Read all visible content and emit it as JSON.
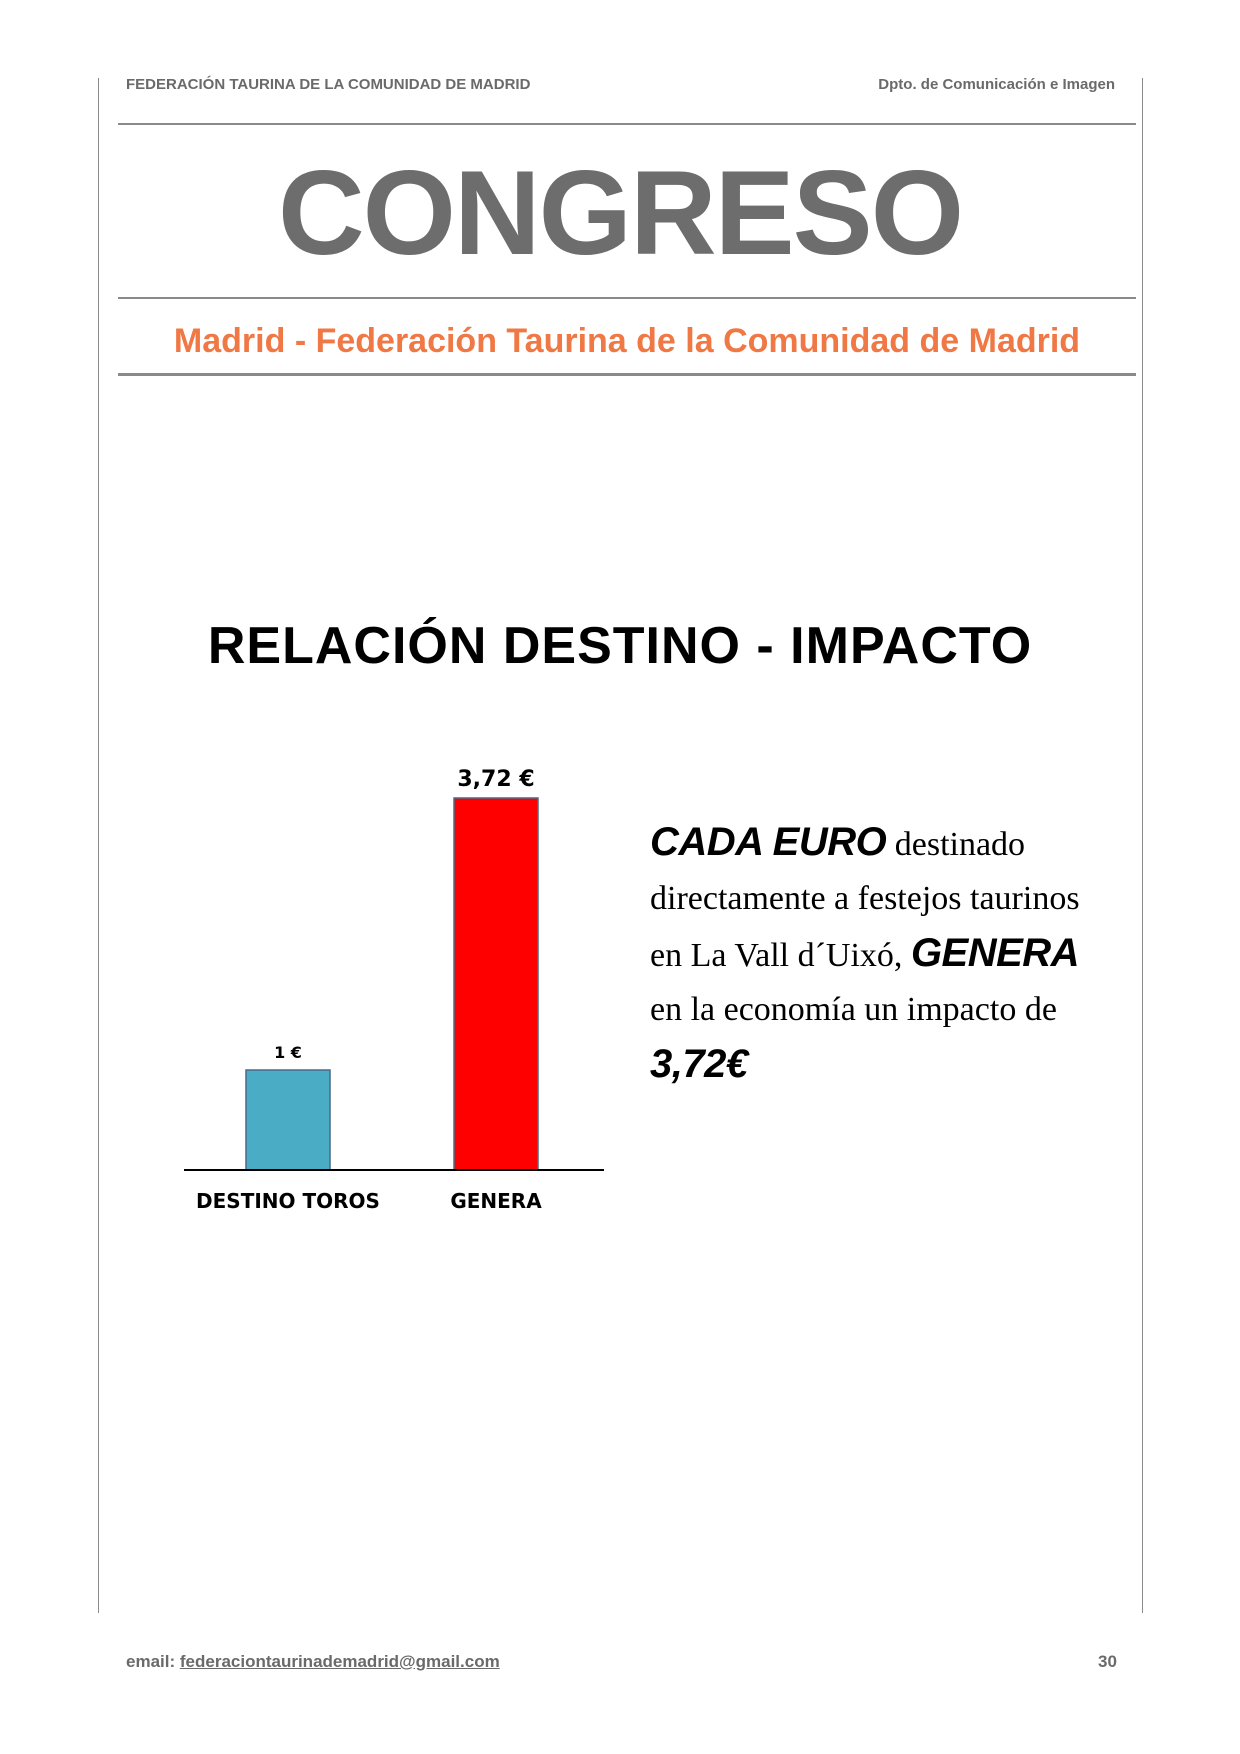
{
  "header": {
    "left": "FEDERACIÓN TAURINA DE LA COMUNIDAD DE MADRID",
    "right": "Dpto. de Comunicación e Imagen"
  },
  "title": "CONGRESO",
  "subtitle": "Madrid - Federación Taurina de la Comunidad de Madrid",
  "section_title": "RELACIÓN DESTINO - IMPACTO",
  "chart_data": {
    "type": "bar",
    "categories": [
      "DESTINO TOROS",
      "GENERA"
    ],
    "values": [
      1,
      3.72
    ],
    "data_labels": [
      "1 €",
      "3,72 €"
    ],
    "colors": [
      "#4bacc6",
      "#ff0000"
    ],
    "ylim": [
      0,
      4
    ],
    "grid": false,
    "legend": false
  },
  "paragraph": {
    "em1": "CADA EURO",
    "text1": " destinado directamente a festejos taurinos en La Vall d´Uixó, ",
    "em2": "GENERA",
    "text2": " en la economía un impacto de ",
    "em3": "3,72€"
  },
  "footer": {
    "email_label": "email:",
    "email": "federaciontaurinademadrid@gmail.com",
    "page_number": "30"
  }
}
